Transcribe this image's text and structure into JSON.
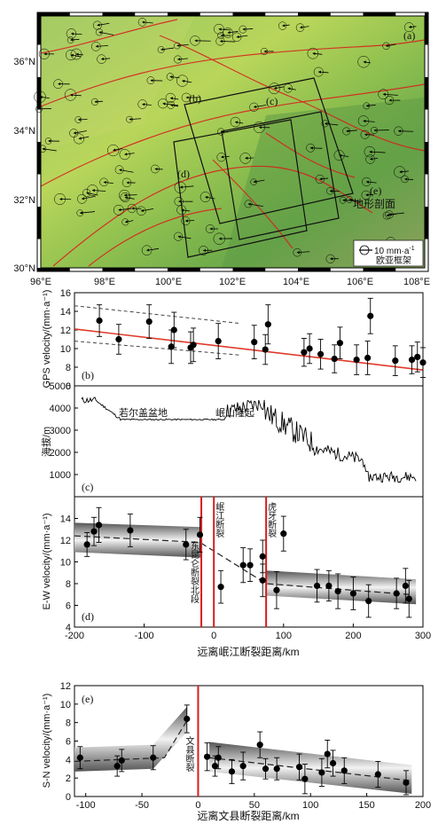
{
  "colors": {
    "fit_line": "#e03a2a",
    "fault_line": "#d91b1b",
    "band_dark": "#606060",
    "marker": "#000000"
  },
  "map": {
    "panel_label": "(a)",
    "lat_ticks": [
      "36°N",
      "34°N",
      "32°N",
      "30°N"
    ],
    "lon_ticks": [
      "96°E",
      "98°E",
      "100°E",
      "102°E",
      "104°E",
      "106°E",
      "108°E"
    ],
    "profile_labels": [
      "(b)",
      "(c)",
      "(d)",
      "(e)"
    ],
    "profile_caption": "地形剖面",
    "legend_value": "10 mm·a",
    "legend_sup": "-1",
    "legend_frame": "欧亚框架"
  },
  "chart_data": [
    {
      "id": "b",
      "type": "scatter",
      "panel_label": "(b)",
      "ylabel": "GPS velocity/(mm·a⁻¹)",
      "ylim": [
        6,
        16
      ],
      "xlim": [
        96,
        108.6
      ],
      "yticks": [
        "6",
        "8",
        "10",
        "12",
        "14",
        "16"
      ],
      "points": [
        [
          96.9,
          13.0,
          1.7
        ],
        [
          97.6,
          11.0,
          1.6
        ],
        [
          98.7,
          12.9,
          1.8
        ],
        [
          99.5,
          10.2,
          1.8
        ],
        [
          99.6,
          12.0,
          1.9
        ],
        [
          100.2,
          10.1,
          1.7
        ],
        [
          100.3,
          10.4,
          1.8
        ],
        [
          101.2,
          10.8,
          1.9
        ],
        [
          102.5,
          10.7,
          1.8
        ],
        [
          102.9,
          9.9,
          1.6
        ],
        [
          103.0,
          12.6,
          2.1
        ],
        [
          104.3,
          9.6,
          1.5
        ],
        [
          104.5,
          10.0,
          1.6
        ],
        [
          104.9,
          9.4,
          1.6
        ],
        [
          105.4,
          8.9,
          1.5
        ],
        [
          105.6,
          10.6,
          1.7
        ],
        [
          106.2,
          8.8,
          1.6
        ],
        [
          106.6,
          9.0,
          1.8
        ],
        [
          106.7,
          13.5,
          1.9
        ],
        [
          107.6,
          8.7,
          1.6
        ],
        [
          108.2,
          8.8,
          1.5
        ],
        [
          108.4,
          9.1,
          1.6
        ],
        [
          108.6,
          8.5,
          1.6
        ]
      ],
      "fit": [
        [
          96,
          12.1
        ],
        [
          108.6,
          7.7
        ]
      ],
      "envelope_upper": [
        [
          96,
          14.6
        ],
        [
          102,
          12.7
        ]
      ],
      "envelope_lower": [
        [
          96,
          10.8
        ],
        [
          102,
          9.3
        ]
      ]
    },
    {
      "id": "c",
      "type": "line",
      "panel_label": "(c)",
      "ylabel": "海拔/m",
      "ylim": [
        0,
        5000
      ],
      "yticks": [
        "1000",
        "2000",
        "3000",
        "4000",
        "5000"
      ],
      "annotations": [
        "若尔盖盆地",
        "岷山隆起"
      ]
    },
    {
      "id": "d",
      "type": "scatter",
      "panel_label": "(d)",
      "ylabel": "E-W velocity/(mm·a⁻¹)",
      "xlabel": "远离岷江断裂距离/km",
      "xlim": [
        -200,
        300
      ],
      "ylim": [
        4,
        16
      ],
      "xticks": [
        "-200",
        "-100",
        "0",
        "100",
        "200",
        "300"
      ],
      "yticks": [
        "4",
        "6",
        "8",
        "10",
        "12",
        "14"
      ],
      "points": [
        [
          -182,
          11.6,
          1.1
        ],
        [
          -172,
          12.8,
          1.3
        ],
        [
          -165,
          13.4,
          1.6
        ],
        [
          -120,
          12.9,
          1.5
        ],
        [
          -40,
          11.6,
          1.4
        ],
        [
          -20,
          12.5,
          1.6
        ],
        [
          10,
          7.7,
          1.5
        ],
        [
          42,
          9.7,
          1.6
        ],
        [
          52,
          9.7,
          1.5
        ],
        [
          70,
          8.3,
          1.5
        ],
        [
          70,
          10.5,
          1.5
        ],
        [
          90,
          7.4,
          1.7
        ],
        [
          100,
          12.6,
          1.6
        ],
        [
          148,
          7.8,
          1.5
        ],
        [
          165,
          7.8,
          1.4
        ],
        [
          178,
          7.3,
          1.6
        ],
        [
          200,
          7.1,
          1.5
        ],
        [
          222,
          6.4,
          1.5
        ],
        [
          262,
          7.1,
          1.4
        ],
        [
          275,
          7.8,
          1.6
        ],
        [
          280,
          6.6,
          1.7
        ]
      ],
      "trend": [
        [
          -200,
          12.4
        ],
        [
          -20,
          11.8
        ],
        [
          75,
          8.0
        ],
        [
          280,
          7.0
        ]
      ],
      "faults": [
        -18,
        0,
        75
      ],
      "fault_labels": [
        "东昆仑断裂北段",
        "岷江断裂",
        "虎牙断裂"
      ]
    },
    {
      "id": "e",
      "type": "scatter",
      "panel_label": "(e)",
      "ylabel": "S-N velocity/(mm·a⁻¹)",
      "xlabel": "远离文县断裂距离/km",
      "xlim": [
        -110,
        200
      ],
      "ylim": [
        0,
        12
      ],
      "xticks": [
        "-100",
        "-50",
        "0",
        "50",
        "100",
        "150",
        "200"
      ],
      "yticks": [
        "0",
        "2",
        "4",
        "6",
        "8",
        "10",
        "12"
      ],
      "points": [
        [
          -105,
          4.2,
          1.2
        ],
        [
          -72,
          3.3,
          1.1
        ],
        [
          -68,
          3.9,
          1.2
        ],
        [
          -40,
          4.2,
          1.3
        ],
        [
          -10,
          8.4,
          1.5
        ],
        [
          8,
          4.3,
          1.5
        ],
        [
          15,
          3.3,
          1.1
        ],
        [
          18,
          4.2,
          1.2
        ],
        [
          30,
          2.7,
          1.3
        ],
        [
          40,
          3.3,
          1.5
        ],
        [
          55,
          5.6,
          1.4
        ],
        [
          60,
          3.0,
          1.1
        ],
        [
          70,
          3.0,
          1.2
        ],
        [
          90,
          3.2,
          1.4
        ],
        [
          95,
          1.9,
          1.6
        ],
        [
          110,
          2.6,
          1.5
        ],
        [
          115,
          4.6,
          1.5
        ],
        [
          120,
          3.6,
          1.4
        ],
        [
          130,
          2.8,
          1.4
        ],
        [
          160,
          2.4,
          1.4
        ],
        [
          185,
          1.5,
          1.3
        ]
      ],
      "trend_left": [
        [
          -110,
          3.8
        ],
        [
          -30,
          4.2
        ],
        [
          -10,
          8.2
        ]
      ],
      "trend_right": [
        [
          10,
          4.2
        ],
        [
          190,
          1.7
        ]
      ],
      "faults": [
        0
      ],
      "fault_labels": [
        "文县断裂"
      ]
    }
  ]
}
